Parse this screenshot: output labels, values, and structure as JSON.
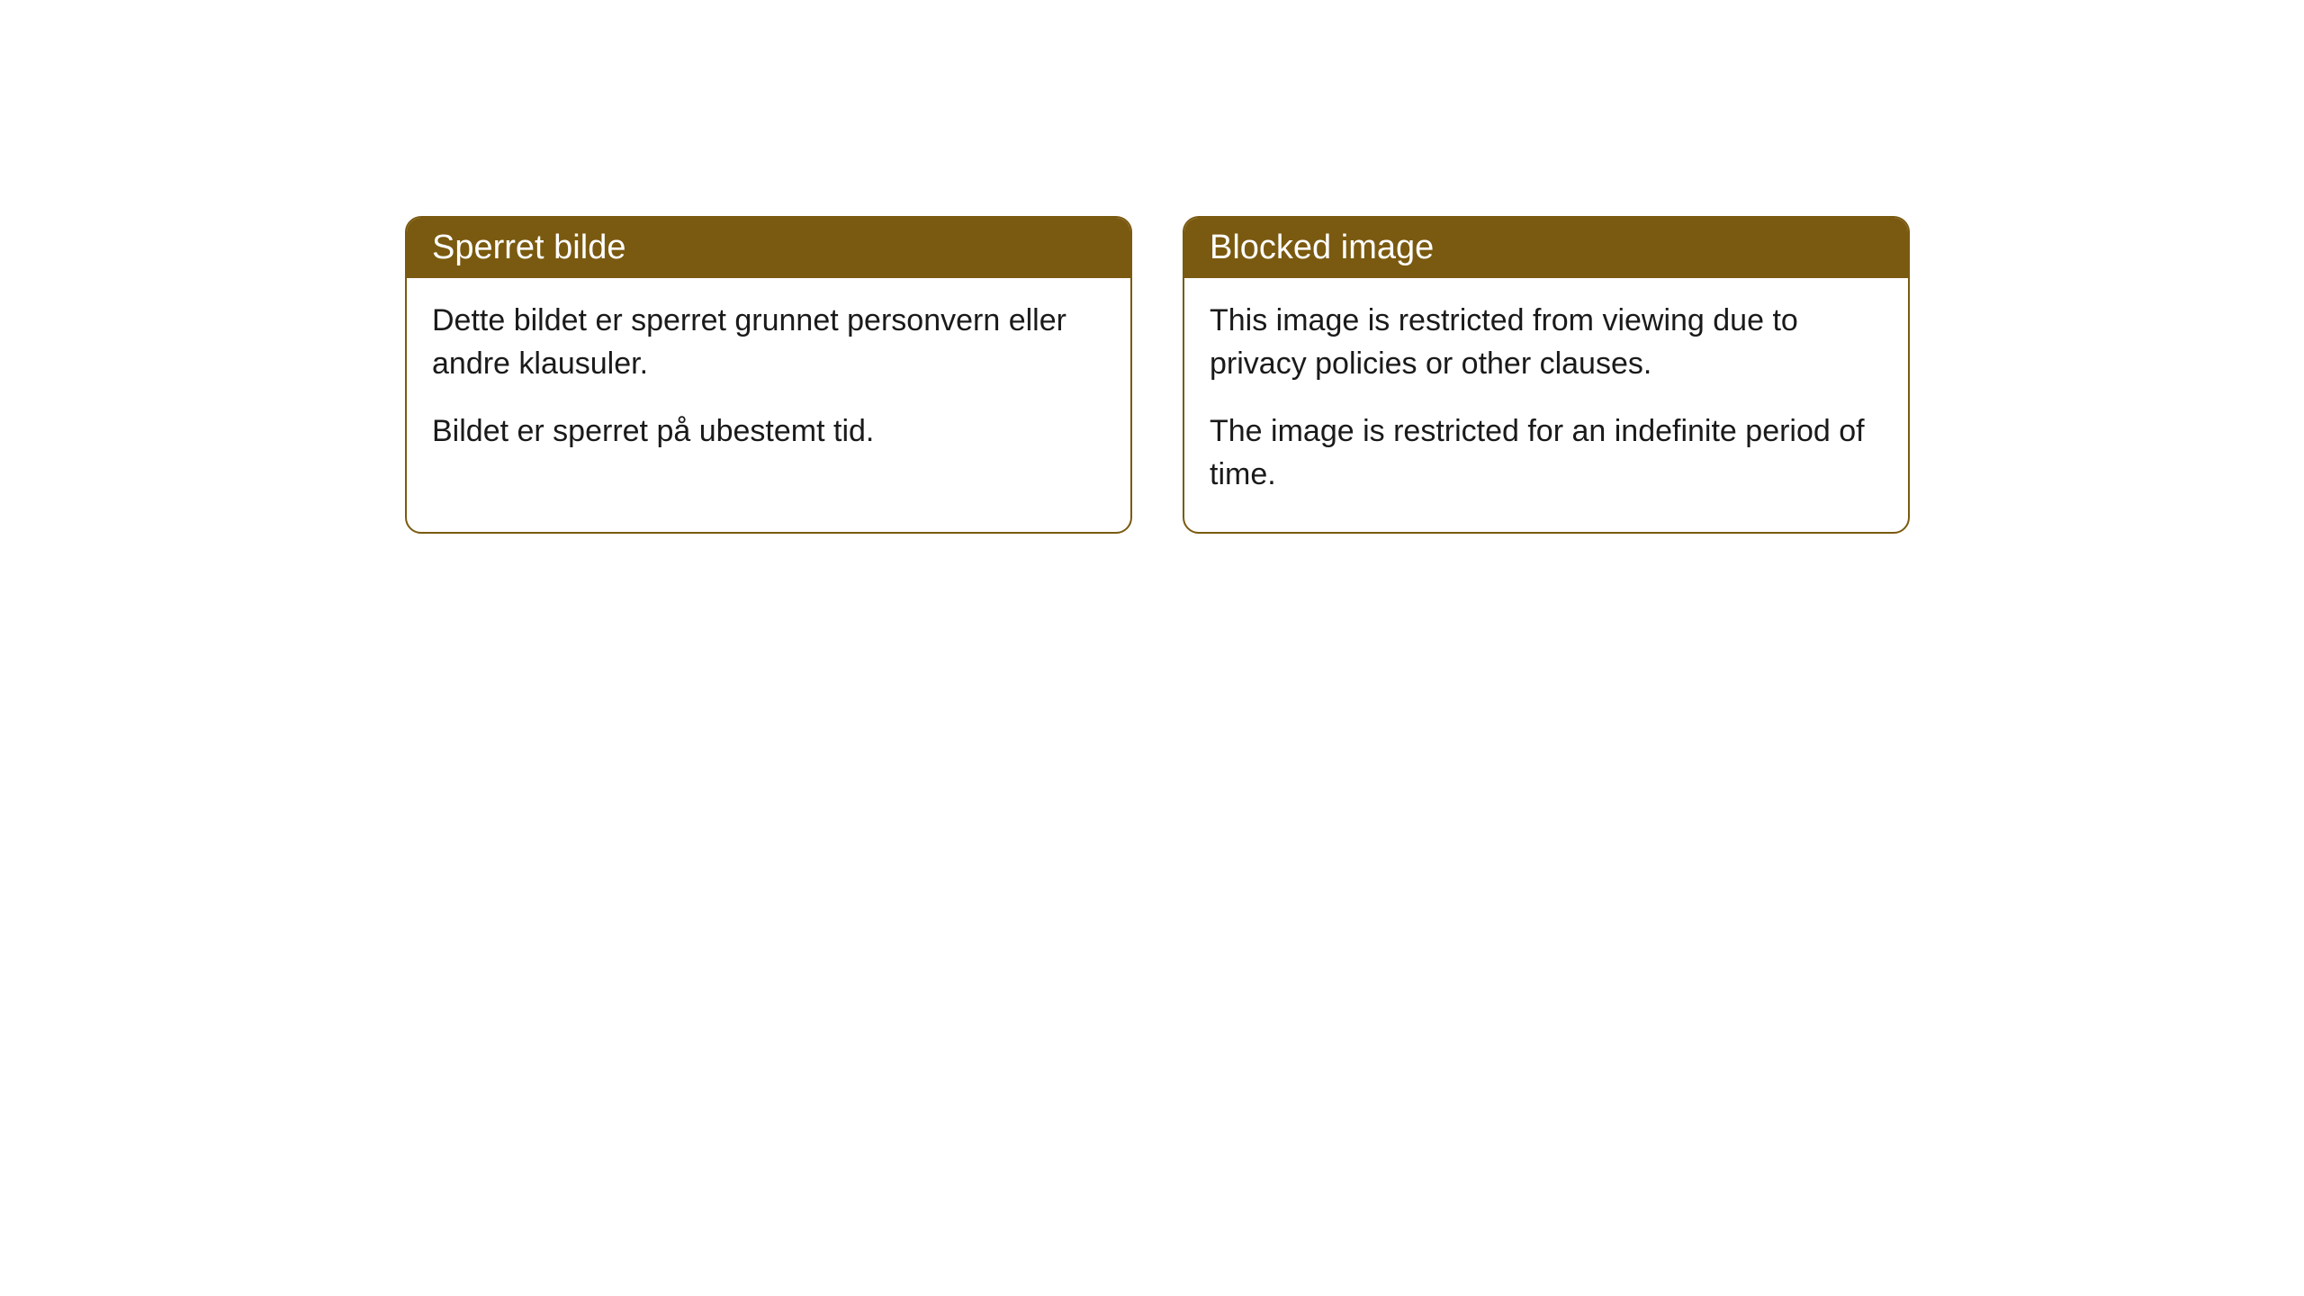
{
  "cards": [
    {
      "title": "Sperret bilde",
      "paragraph1": "Dette bildet er sperret grunnet personvern eller andre klausuler.",
      "paragraph2": "Bildet er sperret på ubestemt tid."
    },
    {
      "title": "Blocked image",
      "paragraph1": "This image is restricted from viewing due to privacy policies or other clauses.",
      "paragraph2": "The image is restricted for an indefinite period of time."
    }
  ],
  "styling": {
    "header_background": "#7a5a10",
    "header_text_color": "#ffffff",
    "border_color": "#7a5a10",
    "body_background": "#ffffff",
    "body_text_color": "#1a1a1a",
    "border_radius": 18,
    "header_fontsize": 38,
    "body_fontsize": 34
  }
}
